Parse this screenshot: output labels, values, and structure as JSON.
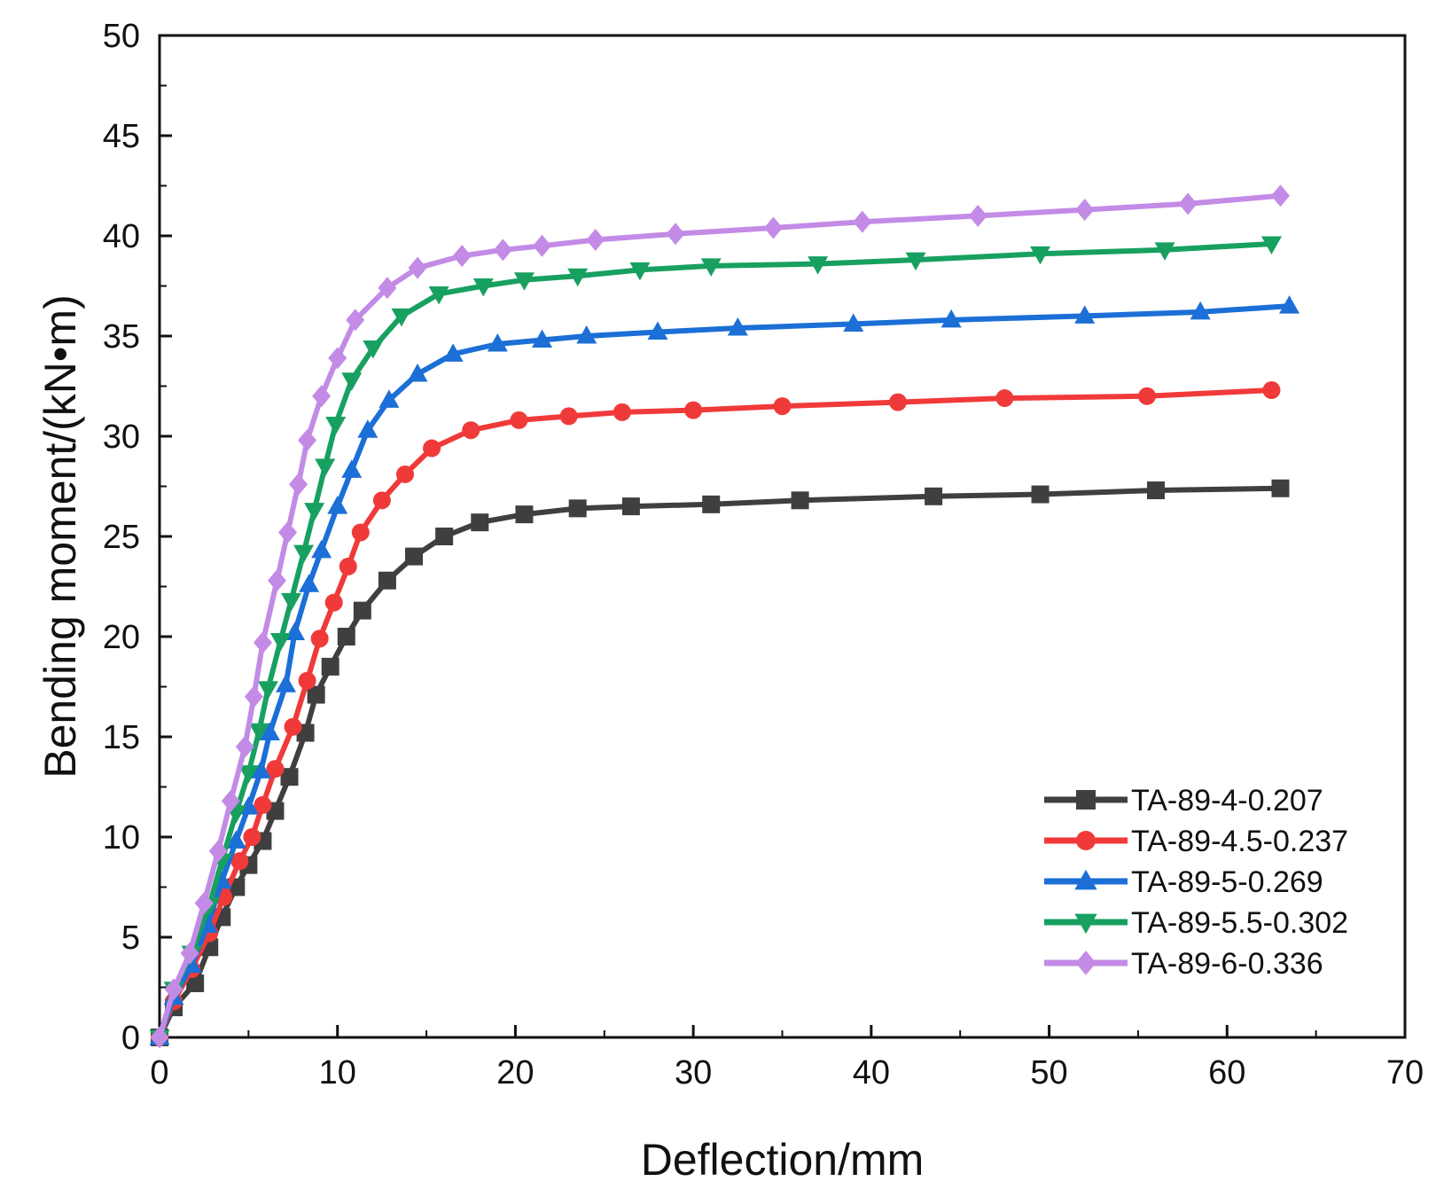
{
  "chart_data": {
    "type": "line",
    "title": "",
    "xlabel": "Deflection/mm",
    "ylabel": "Bending moment/(kN•m)",
    "xlim": [
      0,
      70
    ],
    "ylim": [
      0,
      50
    ],
    "xticks": [
      0,
      10,
      20,
      30,
      40,
      50,
      60,
      70
    ],
    "yticks": [
      0,
      5,
      10,
      15,
      20,
      25,
      30,
      35,
      40,
      45,
      50
    ],
    "grid": false,
    "legend_position": "bottom-right",
    "series": [
      {
        "name": "TA-89-4-0.207",
        "color": "#3f3f3f",
        "marker": "square",
        "points": [
          [
            0,
            0
          ],
          [
            0.8,
            1.5
          ],
          [
            2,
            2.7
          ],
          [
            2.8,
            4.5
          ],
          [
            3.5,
            6.0
          ],
          [
            4.3,
            7.5
          ],
          [
            5,
            8.6
          ],
          [
            5.8,
            9.8
          ],
          [
            6.5,
            11.3
          ],
          [
            7.3,
            13.0
          ],
          [
            8.2,
            15.2
          ],
          [
            8.8,
            17.1
          ],
          [
            9.6,
            18.5
          ],
          [
            10.5,
            20.0
          ],
          [
            11.4,
            21.3
          ],
          [
            12.8,
            22.8
          ],
          [
            14.3,
            24.0
          ],
          [
            16,
            25.0
          ],
          [
            18,
            25.7
          ],
          [
            20.5,
            26.1
          ],
          [
            23.5,
            26.4
          ],
          [
            26.5,
            26.5
          ],
          [
            31,
            26.6
          ],
          [
            36,
            26.8
          ],
          [
            43.5,
            27.0
          ],
          [
            49.5,
            27.1
          ],
          [
            56,
            27.3
          ],
          [
            63,
            27.4
          ]
        ]
      },
      {
        "name": "TA-89-4.5-0.237",
        "color": "#f03a3a",
        "marker": "circle",
        "points": [
          [
            0,
            0
          ],
          [
            0.8,
            1.8
          ],
          [
            1.8,
            3.4
          ],
          [
            2.8,
            5.2
          ],
          [
            3.6,
            7.0
          ],
          [
            4.5,
            8.8
          ],
          [
            5.2,
            10.0
          ],
          [
            5.8,
            11.6
          ],
          [
            6.5,
            13.4
          ],
          [
            7.5,
            15.5
          ],
          [
            8.3,
            17.8
          ],
          [
            9,
            19.9
          ],
          [
            9.8,
            21.7
          ],
          [
            10.6,
            23.5
          ],
          [
            11.3,
            25.2
          ],
          [
            12.5,
            26.8
          ],
          [
            13.8,
            28.1
          ],
          [
            15.3,
            29.4
          ],
          [
            17.5,
            30.3
          ],
          [
            20.2,
            30.8
          ],
          [
            23,
            31.0
          ],
          [
            26,
            31.2
          ],
          [
            30,
            31.3
          ],
          [
            35,
            31.5
          ],
          [
            41.5,
            31.7
          ],
          [
            47.5,
            31.9
          ],
          [
            55.5,
            32.0
          ],
          [
            62.5,
            32.3
          ]
        ]
      },
      {
        "name": "TA-89-5-0.269",
        "color": "#1b6fd6",
        "marker": "triangle-up",
        "points": [
          [
            0,
            0
          ],
          [
            0.8,
            2.0
          ],
          [
            1.8,
            3.6
          ],
          [
            2.7,
            5.6
          ],
          [
            3.5,
            7.8
          ],
          [
            4.3,
            9.8
          ],
          [
            5,
            11.5
          ],
          [
            5.7,
            13.3
          ],
          [
            6.2,
            15.2
          ],
          [
            7.1,
            17.6
          ],
          [
            7.6,
            20.2
          ],
          [
            8.4,
            22.6
          ],
          [
            9.1,
            24.3
          ],
          [
            10,
            26.5
          ],
          [
            10.8,
            28.3
          ],
          [
            11.7,
            30.3
          ],
          [
            12.9,
            31.8
          ],
          [
            14.5,
            33.1
          ],
          [
            16.5,
            34.1
          ],
          [
            19,
            34.6
          ],
          [
            21.5,
            34.8
          ],
          [
            24,
            35.0
          ],
          [
            28,
            35.2
          ],
          [
            32.5,
            35.4
          ],
          [
            39,
            35.6
          ],
          [
            44.5,
            35.8
          ],
          [
            52,
            36.0
          ],
          [
            58.5,
            36.2
          ],
          [
            63.5,
            36.5
          ]
        ]
      },
      {
        "name": "TA-89-5.5-0.302",
        "color": "#18a060",
        "marker": "triangle-down",
        "points": [
          [
            0,
            0
          ],
          [
            0.8,
            2.4
          ],
          [
            1.8,
            4.2
          ],
          [
            2.8,
            6.6
          ],
          [
            3.5,
            8.8
          ],
          [
            4.3,
            11.2
          ],
          [
            5,
            13.2
          ],
          [
            5.6,
            15.3
          ],
          [
            6.1,
            17.4
          ],
          [
            6.8,
            19.8
          ],
          [
            7.4,
            21.8
          ],
          [
            8.1,
            24.2
          ],
          [
            8.7,
            26.3
          ],
          [
            9.3,
            28.5
          ],
          [
            9.9,
            30.6
          ],
          [
            10.8,
            32.8
          ],
          [
            12,
            34.4
          ],
          [
            13.6,
            36.0
          ],
          [
            15.7,
            37.1
          ],
          [
            18.2,
            37.5
          ],
          [
            20.5,
            37.8
          ],
          [
            23.5,
            38.0
          ],
          [
            27,
            38.3
          ],
          [
            31,
            38.5
          ],
          [
            37,
            38.6
          ],
          [
            42.5,
            38.8
          ],
          [
            49.5,
            39.1
          ],
          [
            56.5,
            39.3
          ],
          [
            62.5,
            39.6
          ]
        ]
      },
      {
        "name": "TA-89-6-0.336",
        "color": "#c38be6",
        "marker": "diamond",
        "points": [
          [
            0,
            0
          ],
          [
            0.8,
            2.4
          ],
          [
            1.7,
            4.2
          ],
          [
            2.5,
            6.7
          ],
          [
            3.3,
            9.3
          ],
          [
            4,
            11.8
          ],
          [
            4.8,
            14.5
          ],
          [
            5.3,
            17.0
          ],
          [
            5.8,
            19.7
          ],
          [
            6.6,
            22.8
          ],
          [
            7.2,
            25.2
          ],
          [
            7.8,
            27.6
          ],
          [
            8.3,
            29.8
          ],
          [
            9.1,
            32.0
          ],
          [
            10,
            33.9
          ],
          [
            11,
            35.8
          ],
          [
            12.8,
            37.4
          ],
          [
            14.5,
            38.4
          ],
          [
            17,
            39.0
          ],
          [
            19.3,
            39.3
          ],
          [
            21.5,
            39.5
          ],
          [
            24.5,
            39.8
          ],
          [
            29,
            40.1
          ],
          [
            34.5,
            40.4
          ],
          [
            39.5,
            40.7
          ],
          [
            46,
            41.0
          ],
          [
            52,
            41.3
          ],
          [
            57.8,
            41.6
          ],
          [
            63,
            42.0
          ]
        ]
      }
    ]
  }
}
